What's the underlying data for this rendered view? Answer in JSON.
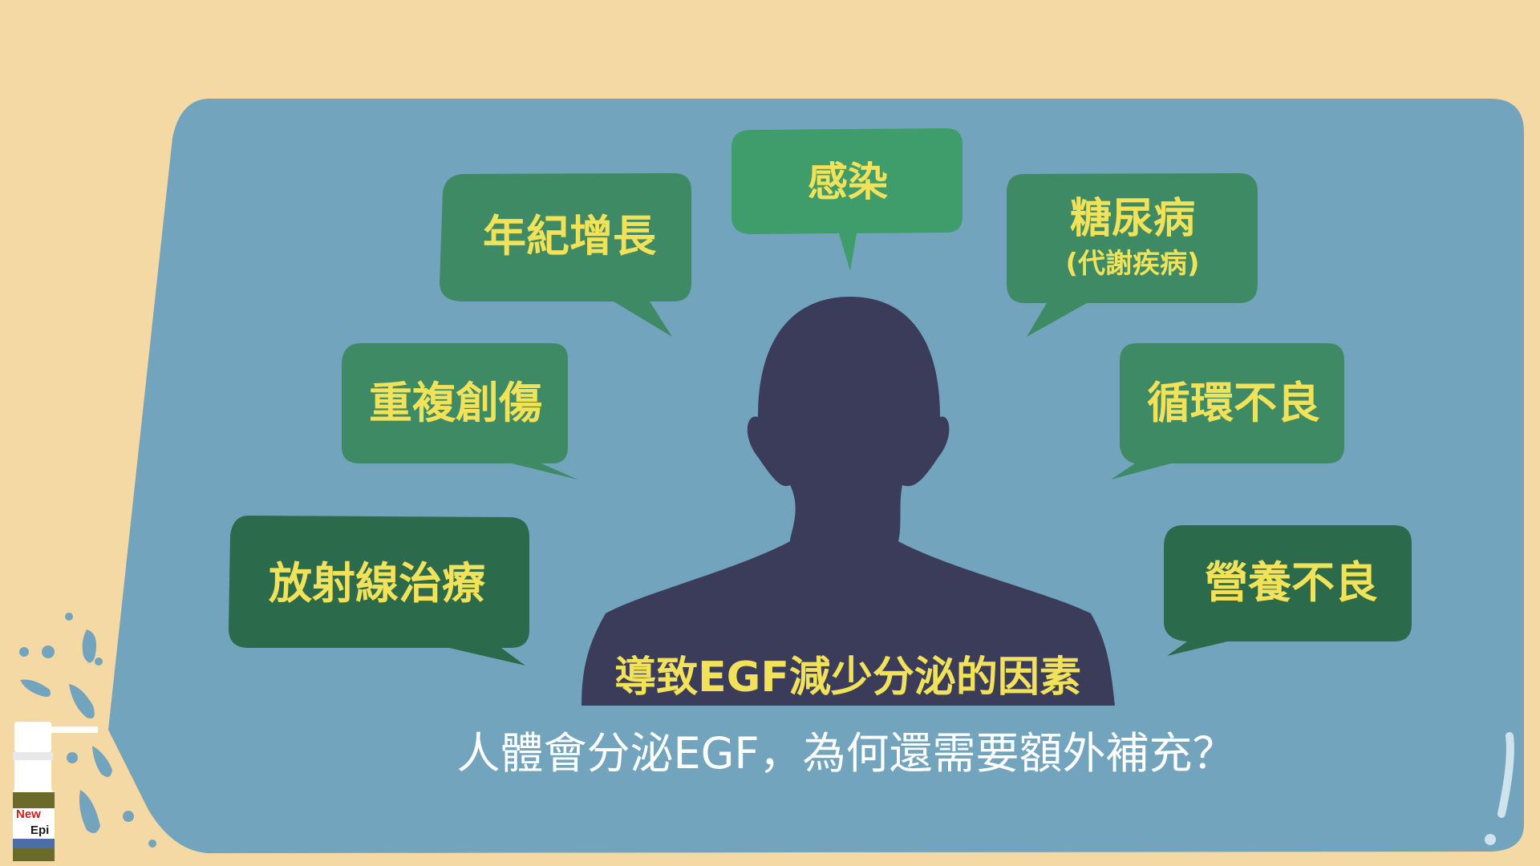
{
  "colors": {
    "background": "#f5d9a4",
    "panel": "#73a4bd",
    "bubble_light": "#3f9c6b",
    "bubble_mid": "#3d8a64",
    "bubble_dark": "#2c6a4c",
    "silhouette": "#3a3c5a",
    "label_yellow": "#f2e25a",
    "white_text": "#ffffff"
  },
  "bubbles": {
    "infection": "感染",
    "aging": "年紀增長",
    "diabetes": "糖尿病",
    "diabetes_sub": "(代謝疾病)",
    "repeated_trauma": "重複創傷",
    "poor_circulation": "循環不良",
    "radiotherapy": "放射線治療",
    "malnutrition": "營養不良"
  },
  "center_label": "導致EGF減少分泌的因素",
  "question": "人體會分泌EGF，為何還需要額外補充？",
  "brand": {
    "line1": "New",
    "line2": "Epi"
  },
  "icons": {
    "silhouette": "person-silhouette-icon",
    "spray": "spray-bottle-icon",
    "droplets": "droplet-icon",
    "exclamation": "exclamation-icon"
  }
}
